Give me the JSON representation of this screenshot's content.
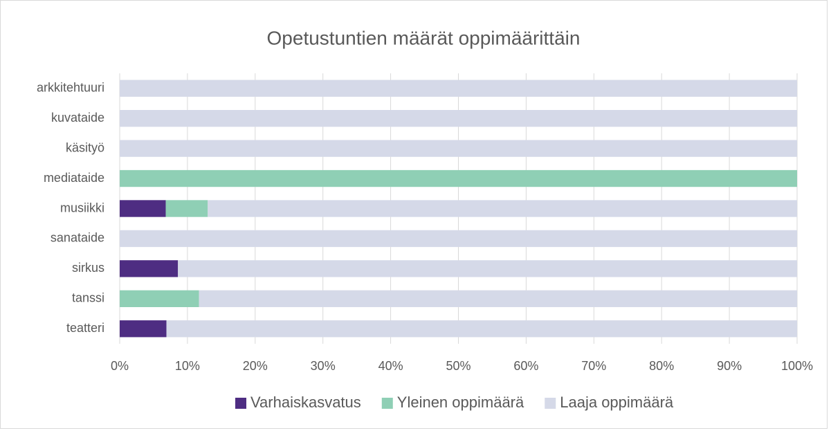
{
  "chart_data": {
    "type": "bar",
    "orientation": "horizontal",
    "stacked": true,
    "title": "Opetustuntien määrät oppimäärittäin",
    "categories": [
      "arkkitehtuuri",
      "kuvataide",
      "käsityö",
      "mediataide",
      "musiikki",
      "sanataide",
      "sirkus",
      "tanssi",
      "teatteri"
    ],
    "series": [
      {
        "name": "Varhaiskasvatus",
        "color": "#4e2d82",
        "values": [
          0,
          0,
          0,
          0,
          6.8,
          0,
          8.6,
          0,
          6.9
        ]
      },
      {
        "name": "Yleinen oppimäärä",
        "color": "#8fcfb5",
        "values": [
          0,
          0,
          0,
          100,
          6.2,
          0,
          0,
          11.7,
          0
        ]
      },
      {
        "name": "Laaja oppimäärä",
        "color": "#d5d9e8",
        "values": [
          100,
          100,
          100,
          0,
          87.0,
          100,
          91.4,
          88.3,
          93.1
        ]
      }
    ],
    "xlim": [
      0,
      100
    ],
    "xticks": [
      {
        "value": 0,
        "label": "0%"
      },
      {
        "value": 10,
        "label": "10%"
      },
      {
        "value": 20,
        "label": "20%"
      },
      {
        "value": 30,
        "label": "30%"
      },
      {
        "value": 40,
        "label": "40%"
      },
      {
        "value": 50,
        "label": "50%"
      },
      {
        "value": 60,
        "label": "60%"
      },
      {
        "value": 70,
        "label": "70%"
      },
      {
        "value": 80,
        "label": "80%"
      },
      {
        "value": 90,
        "label": "90%"
      },
      {
        "value": 100,
        "label": "100%"
      }
    ],
    "grid": true,
    "legend": "bottom"
  }
}
